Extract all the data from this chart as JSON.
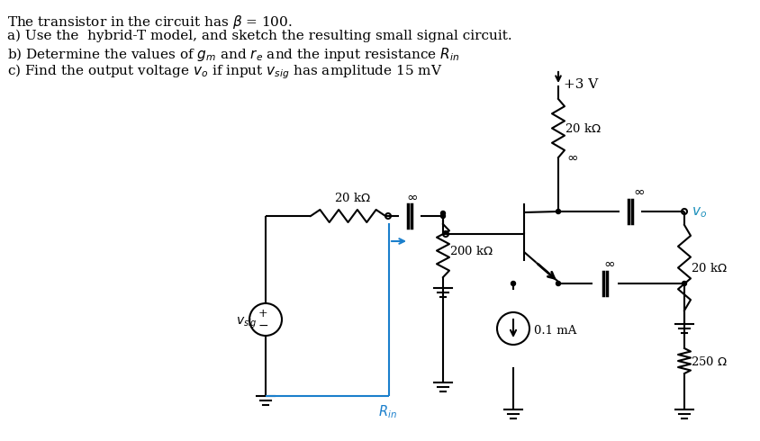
{
  "bg_color": "#ffffff",
  "text_color": "#000000",
  "blue_color": "#1a7fcc",
  "cyan_color": "#1a8fbb",
  "lw": 1.5
}
